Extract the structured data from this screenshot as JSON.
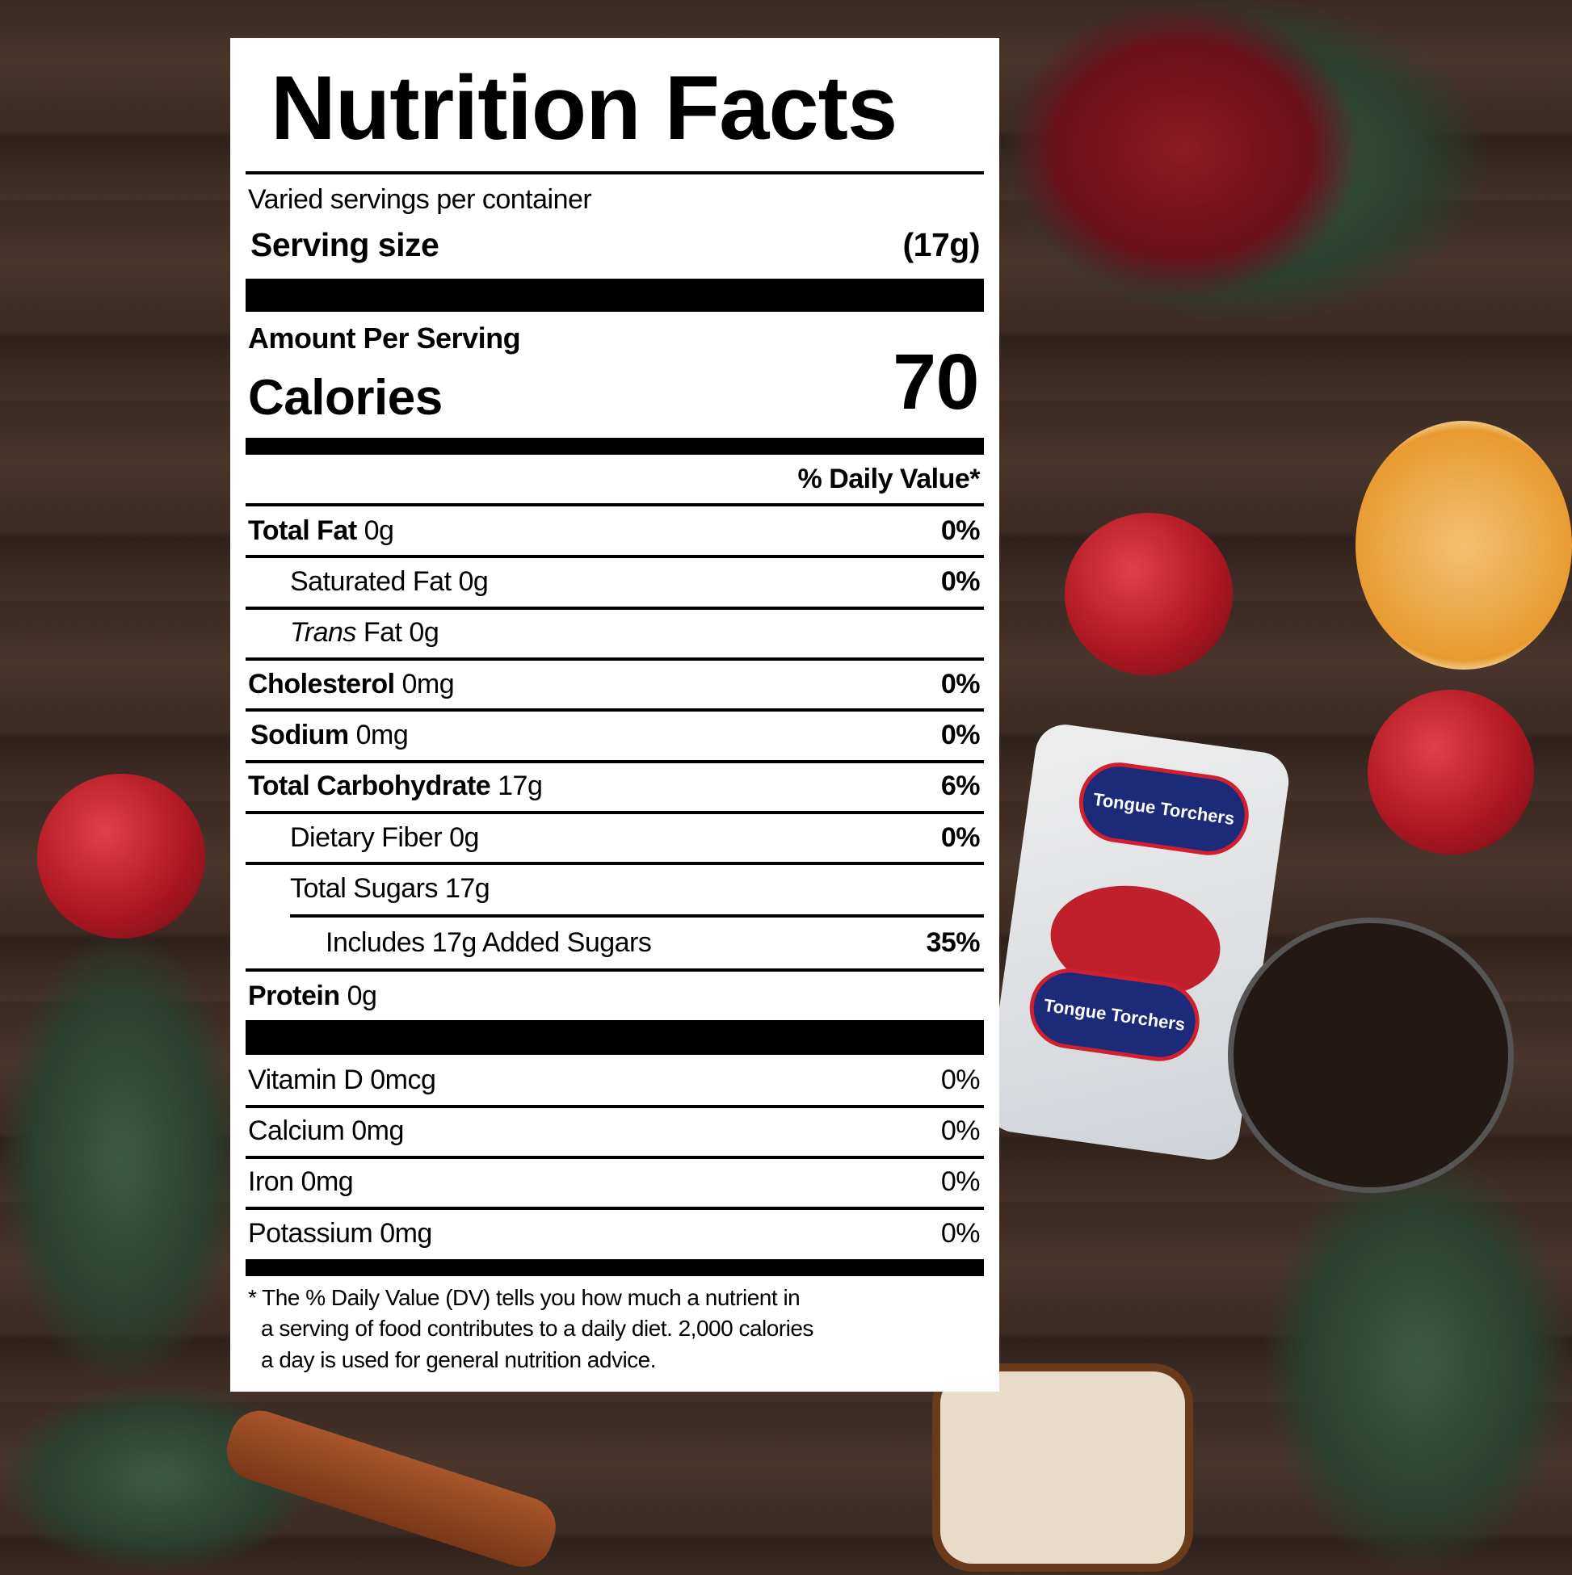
{
  "label": {
    "title": "Nutrition Facts",
    "servings_per_container": "Varied servings per container",
    "serving_size_label": "Serving size",
    "serving_size_value": "(17g)",
    "amount_per_serving": "Amount Per Serving",
    "calories_label": "Calories",
    "calories_value": "70",
    "daily_value_header": "% Daily Value*",
    "nutrients": [
      {
        "name": "Total Fat",
        "amount": "0g",
        "dv": "0%"
      },
      {
        "name": "Saturated Fat",
        "amount": "0g",
        "dv": "0%"
      },
      {
        "name": "Trans",
        "name_rest": "Fat",
        "amount": "0g",
        "dv": ""
      },
      {
        "name": "Cholesterol",
        "amount": "0mg",
        "dv": "0%"
      },
      {
        "name": "Sodium",
        "amount": "0mg",
        "dv": "0%"
      },
      {
        "name": "Total Carbohydrate",
        "amount": "17g",
        "dv": "6%"
      },
      {
        "name": "Dietary Fiber",
        "amount": "0g",
        "dv": "0%"
      },
      {
        "name": "Total Sugars",
        "amount": "17g",
        "dv": ""
      },
      {
        "name": "Includes 17g Added Sugars",
        "amount": "",
        "dv": "35%"
      },
      {
        "name": "Protein",
        "amount": "0g",
        "dv": ""
      }
    ],
    "vitamins": [
      {
        "name": "Vitamin D",
        "amount": "0mcg",
        "dv": "0%"
      },
      {
        "name": "Calcium",
        "amount": "0mg",
        "dv": "0%"
      },
      {
        "name": "Iron",
        "amount": "0mg",
        "dv": "0%"
      },
      {
        "name": "Potassium",
        "amount": "0mg",
        "dv": "0%"
      }
    ],
    "footnote": [
      "* The % Daily Value (DV) tells you how much a nutrient in",
      "a serving of food contributes to a daily diet. 2,000 calories",
      "a day is used for general nutrition advice."
    ]
  },
  "product_wrapper_brand": "Tongue Torchers"
}
